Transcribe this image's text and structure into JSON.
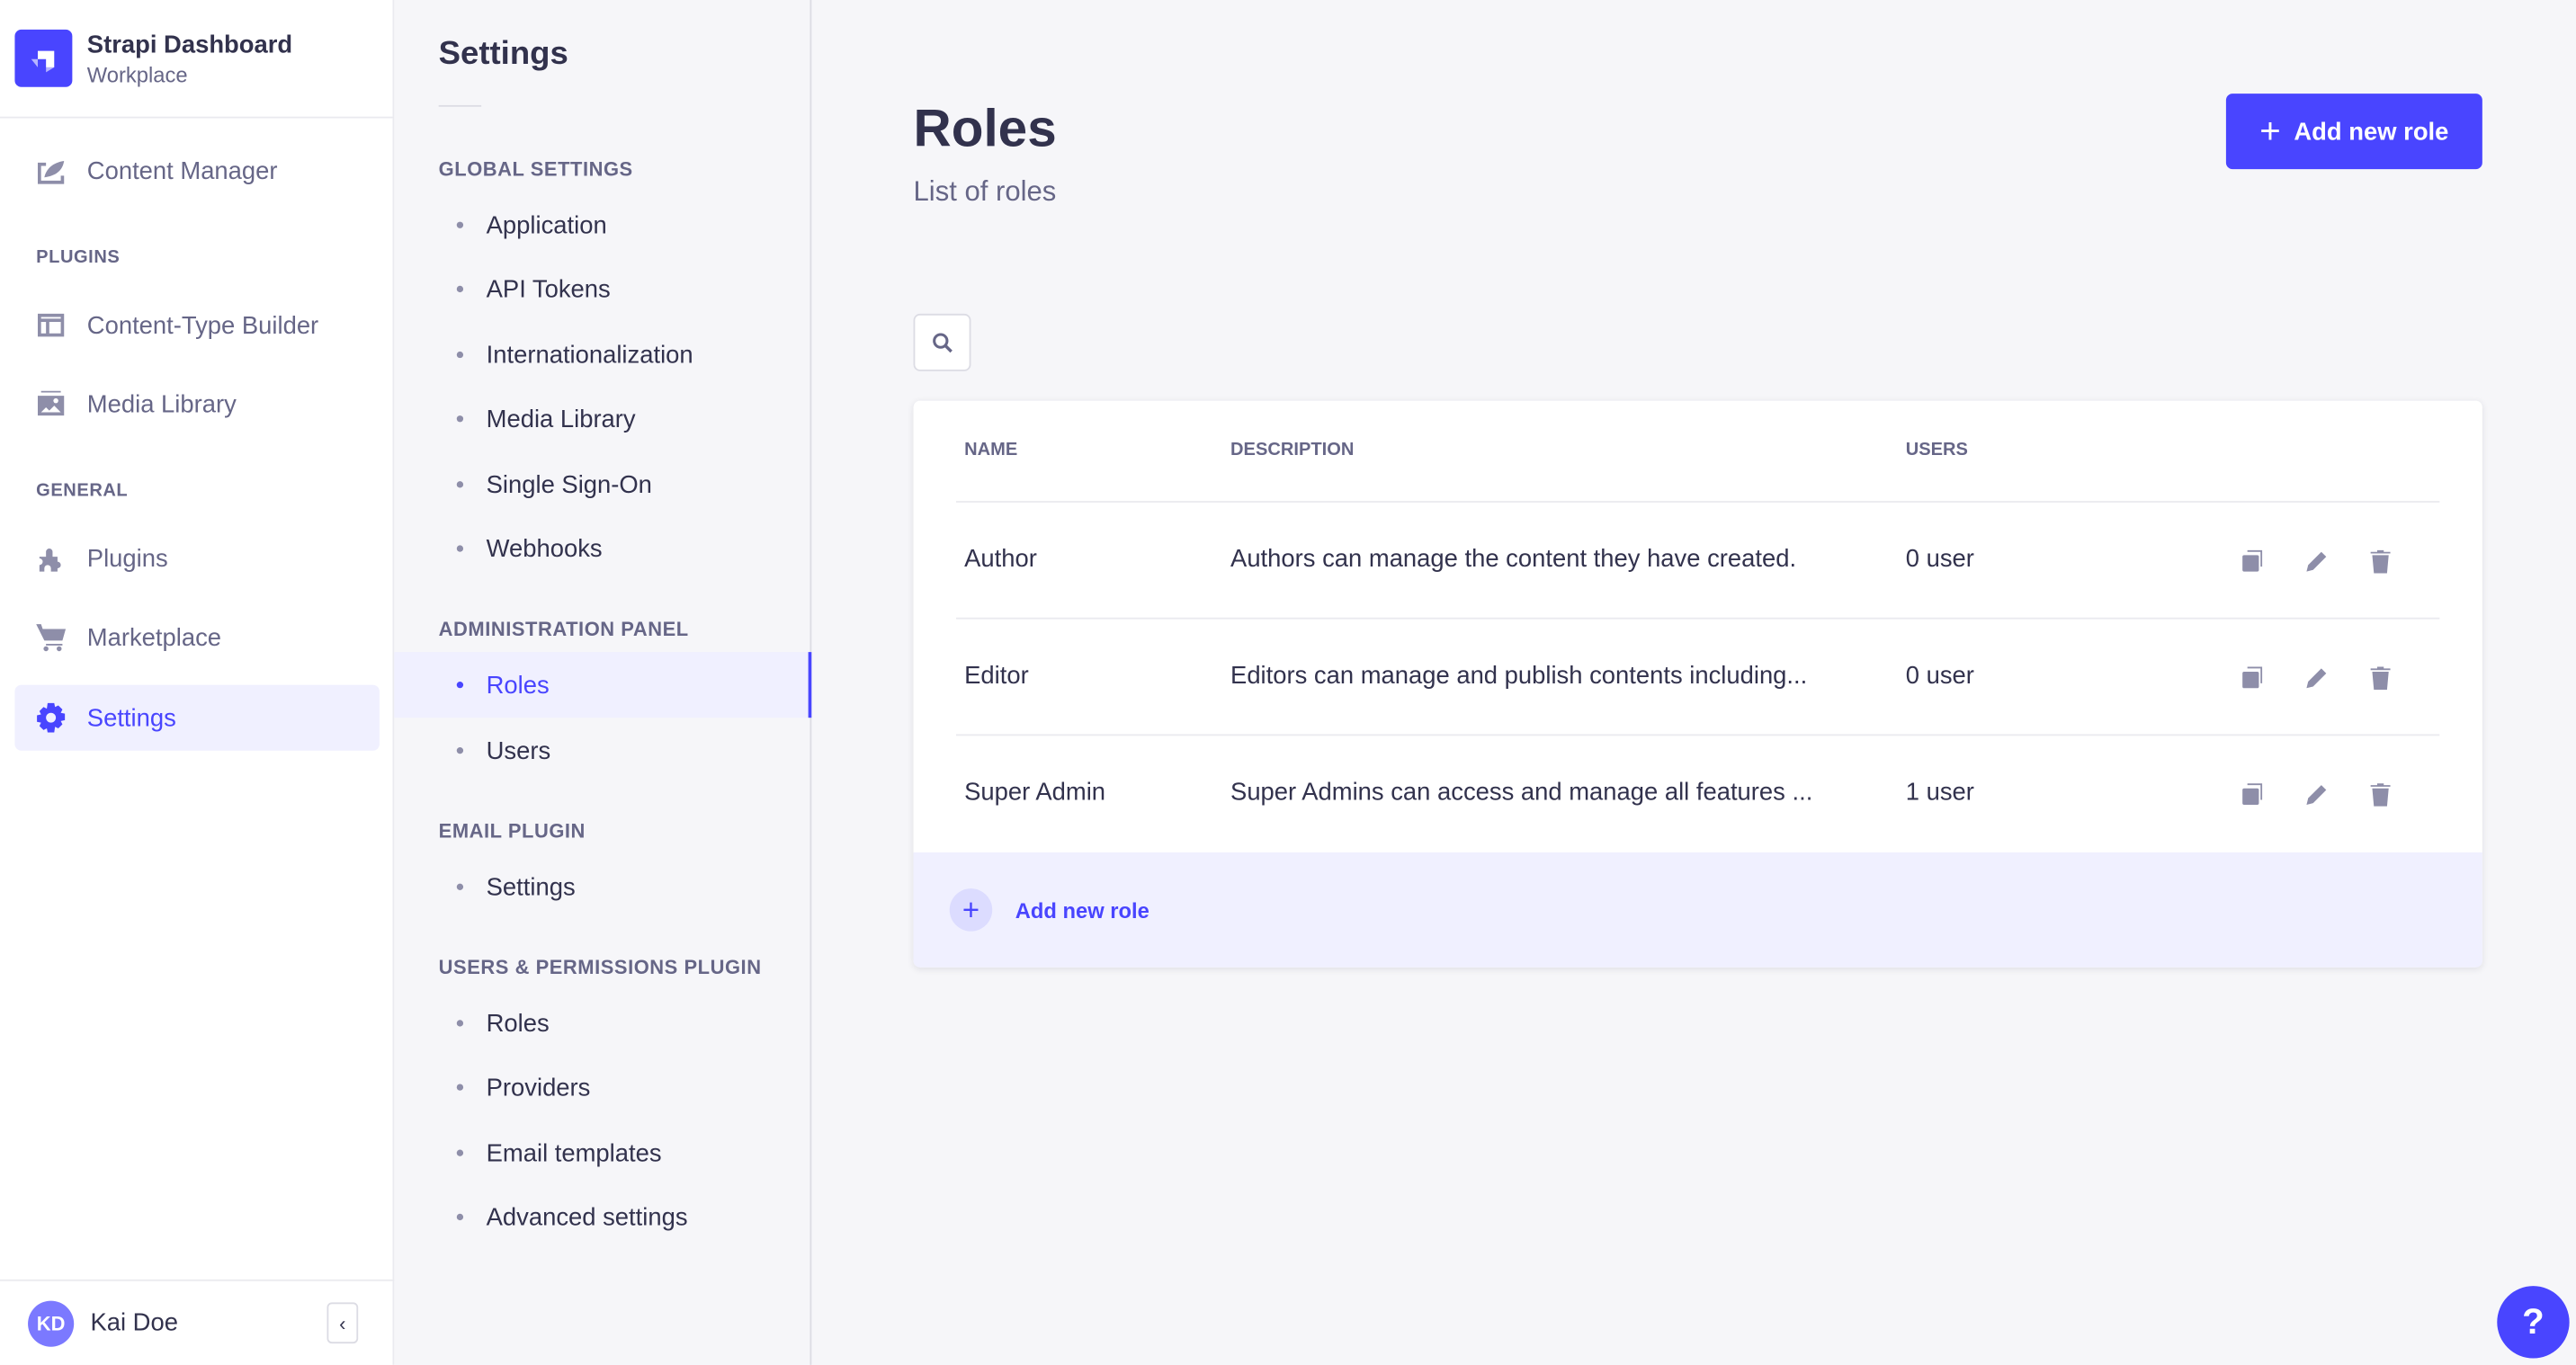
{
  "brand": {
    "title": "Strapi Dashboard",
    "subtitle": "Workplace"
  },
  "nav": {
    "content_manager": "Content Manager",
    "plugins_section": "PLUGINS",
    "ctb": "Content-Type Builder",
    "media": "Media Library",
    "general_section": "GENERAL",
    "plugins": "Plugins",
    "marketplace": "Marketplace",
    "settings": "Settings"
  },
  "user": {
    "initials": "KD",
    "name": "Kai Doe"
  },
  "settings_nav": {
    "title": "Settings",
    "sections": [
      {
        "label": "GLOBAL SETTINGS",
        "items": [
          "Application",
          "API Tokens",
          "Internationalization",
          "Media Library",
          "Single Sign-On",
          "Webhooks"
        ]
      },
      {
        "label": "ADMINISTRATION PANEL",
        "items": [
          "Roles",
          "Users"
        ]
      },
      {
        "label": "EMAIL PLUGIN",
        "items": [
          "Settings"
        ]
      },
      {
        "label": "USERS & PERMISSIONS PLUGIN",
        "items": [
          "Roles",
          "Providers",
          "Email templates",
          "Advanced settings"
        ]
      }
    ],
    "active": "Roles"
  },
  "main": {
    "title": "Roles",
    "subtitle": "List of roles",
    "add_button": "Add new role",
    "footer_add": "Add new role",
    "columns": [
      "NAME",
      "DESCRIPTION",
      "USERS"
    ],
    "rows": [
      {
        "name": "Author",
        "description": "Authors can manage the content they have created.",
        "users": "0 user"
      },
      {
        "name": "Editor",
        "description": "Editors can manage and publish contents including...",
        "users": "0 user"
      },
      {
        "name": "Super Admin",
        "description": "Super Admins can access and manage all features ...",
        "users": "1 user"
      }
    ]
  },
  "help": "?",
  "colors": {
    "accent": "#4945ff",
    "active_bg": "#f0f0ff",
    "icon": "#8e8ea9"
  }
}
